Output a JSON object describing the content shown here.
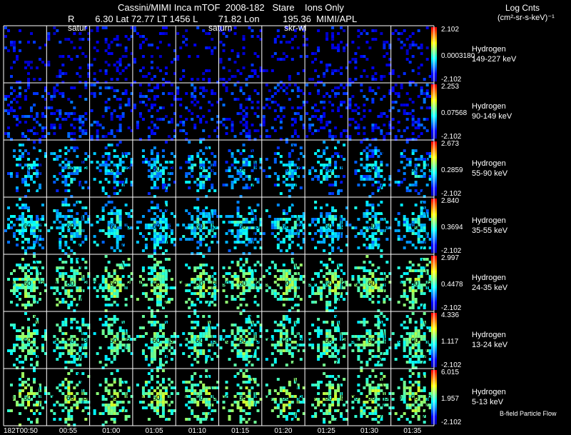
{
  "header": {
    "line1": "Cassini/MIMI Inca mTOF  2008-182   Stare    Ions Only",
    "line2": "R        6.30 Lat 72.77 LT 1456 L        71.82 Lon         195.36  MIMI/APL",
    "units_line1": "Log Cnts",
    "units_line2": "(cm²-sr-s-keV)⁻¹",
    "frame_labels": [
      "satur",
      "saturn",
      "skr-wl"
    ]
  },
  "footer": {
    "bfield_label": "B-field Particle Flow"
  },
  "colors": {
    "background": "#000000",
    "grid_lines": "#ffffff",
    "colormap": [
      "#0000aa",
      "#0000ff",
      "#0080ff",
      "#00ffff",
      "#80ff80",
      "#ffff00",
      "#ff8000",
      "#ff0000"
    ]
  },
  "chart_data": {
    "type": "heatmap",
    "title": "Cassini/MIMI Inca mTOF  2008-182   Stare    Ions Only",
    "x_tick_labels": [
      "182T00:50",
      "00:55",
      "01:00",
      "01:05",
      "01:10",
      "01:15",
      "01:20",
      "01:25",
      "01:30",
      "01:35"
    ],
    "panel_overlay_labels": [
      "90",
      "60",
      "3"
    ],
    "rows": [
      {
        "species": "Hydrogen",
        "energy": "149-227 keV",
        "cbar_max": "2.102",
        "cbar_mid": "0.0003180",
        "cbar_min": "-2.102",
        "level": 0.12,
        "spread": 0.1,
        "density": 0.25
      },
      {
        "species": "Hydrogen",
        "energy": "90-149 keV",
        "cbar_max": "2.253",
        "cbar_mid": "0.07568",
        "cbar_min": "-2.102",
        "level": 0.16,
        "spread": 0.12,
        "density": 0.4
      },
      {
        "species": "Hydrogen",
        "energy": "55-90 keV",
        "cbar_max": "2.673",
        "cbar_mid": "0.2859",
        "cbar_min": "-2.102",
        "level": 0.3,
        "spread": 0.14,
        "density": 0.58
      },
      {
        "species": "Hydrogen",
        "energy": "35-55 keV",
        "cbar_max": "2.840",
        "cbar_mid": "0.3694",
        "cbar_min": "-2.102",
        "level": 0.36,
        "spread": 0.12,
        "density": 0.72
      },
      {
        "species": "Hydrogen",
        "energy": "24-35 keV",
        "cbar_max": "2.997",
        "cbar_mid": "0.4478",
        "cbar_min": "-2.102",
        "level": 0.5,
        "spread": 0.1,
        "density": 0.74
      },
      {
        "species": "Hydrogen",
        "energy": "13-24 keV",
        "cbar_max": "4.336",
        "cbar_mid": "1.117",
        "cbar_min": "-2.102",
        "level": 0.48,
        "spread": 0.09,
        "density": 0.72
      },
      {
        "species": "Hydrogen",
        "energy": "5-13 keV",
        "cbar_max": "6.015",
        "cbar_mid": "1.957",
        "cbar_min": "-2.102",
        "level": 0.52,
        "spread": 0.1,
        "density": 0.62
      }
    ]
  }
}
